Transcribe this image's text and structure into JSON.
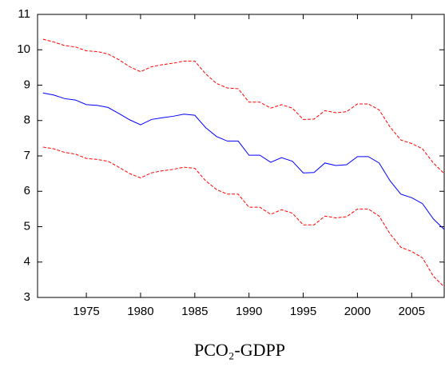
{
  "chart_data": {
    "type": "line",
    "title": "PCO₂-GDPP",
    "x": [
      1971,
      1972,
      1973,
      1974,
      1975,
      1976,
      1977,
      1978,
      1979,
      1980,
      1981,
      1982,
      1983,
      1984,
      1985,
      1986,
      1987,
      1988,
      1989,
      1990,
      1991,
      1992,
      1993,
      1994,
      1995,
      1996,
      1997,
      1998,
      1999,
      2000,
      2001,
      2002,
      2003,
      2004,
      2005,
      2006,
      2007,
      2008
    ],
    "series": [
      {
        "color": "#0000ff",
        "dash": false,
        "values": [
          8.78,
          8.72,
          8.62,
          8.58,
          8.45,
          8.43,
          8.37,
          8.2,
          8.02,
          7.88,
          8.03,
          8.08,
          8.12,
          8.18,
          8.15,
          7.8,
          7.55,
          7.42,
          7.42,
          7.02,
          7.02,
          6.82,
          6.95,
          6.85,
          6.52,
          6.53,
          6.8,
          6.73,
          6.75,
          6.98,
          6.98,
          6.8,
          6.3,
          5.92,
          5.82,
          5.65,
          5.22,
          4.92
        ]
      },
      {
        "color": "#ff0000",
        "dash": true,
        "values": [
          10.3,
          10.22,
          10.12,
          10.08,
          9.97,
          9.95,
          9.88,
          9.72,
          9.52,
          9.38,
          9.52,
          9.58,
          9.62,
          9.68,
          9.68,
          9.32,
          9.05,
          8.92,
          8.9,
          8.52,
          8.52,
          8.35,
          8.45,
          8.35,
          8.03,
          8.04,
          8.28,
          8.22,
          8.25,
          8.47,
          8.47,
          8.3,
          7.82,
          7.45,
          7.35,
          7.2,
          6.8,
          6.5
        ]
      },
      {
        "color": "#ff0000",
        "dash": true,
        "values": [
          7.25,
          7.2,
          7.1,
          7.05,
          6.93,
          6.9,
          6.85,
          6.68,
          6.5,
          6.38,
          6.52,
          6.58,
          6.62,
          6.68,
          6.65,
          6.3,
          6.05,
          5.92,
          5.92,
          5.55,
          5.55,
          5.35,
          5.48,
          5.38,
          5.05,
          5.05,
          5.3,
          5.25,
          5.28,
          5.5,
          5.5,
          5.3,
          4.8,
          4.42,
          4.3,
          4.12,
          3.6,
          3.3
        ]
      }
    ],
    "xlim": [
      1970.5,
      2008
    ],
    "xticks": [
      1975,
      1980,
      1985,
      1990,
      1995,
      2000,
      2005
    ],
    "ylim": [
      3,
      11
    ],
    "yticks": [
      3,
      4,
      5,
      6,
      7,
      8,
      9,
      10,
      11
    ]
  }
}
